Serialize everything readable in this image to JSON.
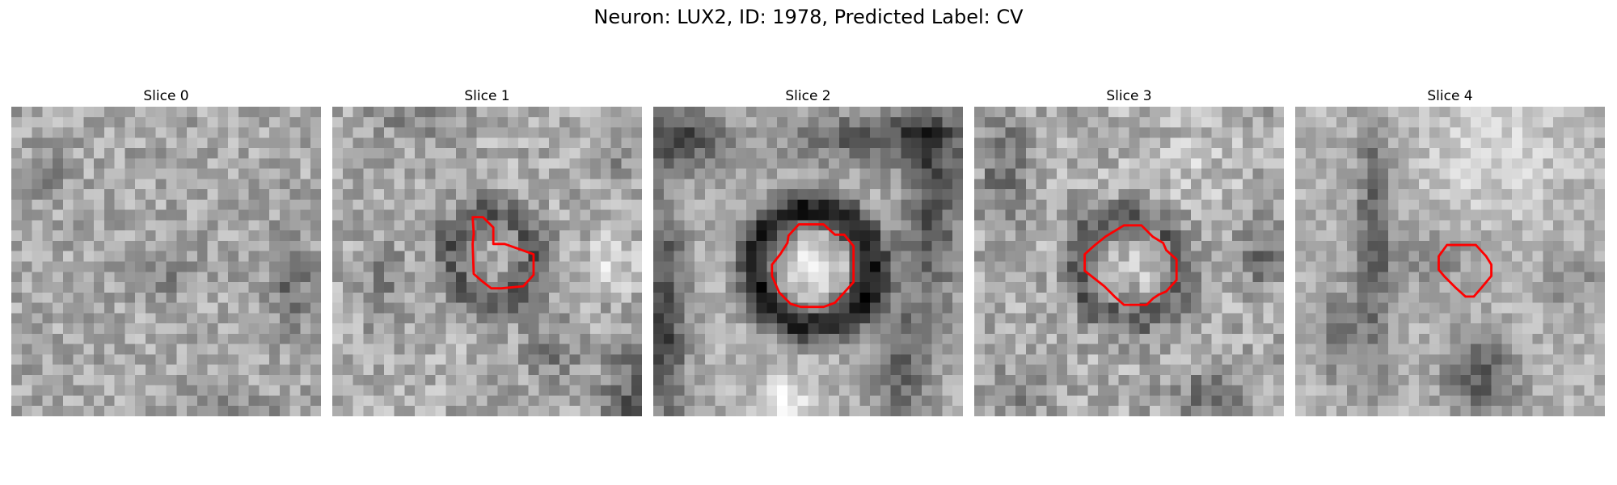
{
  "figure": {
    "title": "Neuron: LUX2, ID: 1978, Predicted Label: CV",
    "colormap": "gray",
    "contour_color": "#ff0000"
  },
  "panels": [
    {
      "title": "Slice 0",
      "has_contour": false,
      "contour": []
    },
    {
      "title": "Slice 1",
      "has_contour": true,
      "contour": [
        [
          13.6,
          10.7
        ],
        [
          14.6,
          10.7
        ],
        [
          15.6,
          11.7
        ],
        [
          15.6,
          13.3
        ],
        [
          16.7,
          13.3
        ],
        [
          19.5,
          14.3
        ],
        [
          19.5,
          16.3
        ],
        [
          18.5,
          17.4
        ],
        [
          16.4,
          17.6
        ],
        [
          15.4,
          17.6
        ],
        [
          14.5,
          16.9
        ],
        [
          13.7,
          16.2
        ],
        [
          13.6,
          13.3
        ],
        [
          13.7,
          12.3
        ]
      ]
    },
    {
      "title": "Slice 2",
      "has_contour": true,
      "contour": [
        [
          14.1,
          11.4
        ],
        [
          16.5,
          11.4
        ],
        [
          17.6,
          12.4
        ],
        [
          18.5,
          12.4
        ],
        [
          19.4,
          13.5
        ],
        [
          19.4,
          17.0
        ],
        [
          18.5,
          18.0
        ],
        [
          17.6,
          19.0
        ],
        [
          16.5,
          19.4
        ],
        [
          14.3,
          19.4
        ],
        [
          13.3,
          19.1
        ],
        [
          12.2,
          18.0
        ],
        [
          11.5,
          16.4
        ],
        [
          11.5,
          15.3
        ],
        [
          12.3,
          14.3
        ],
        [
          13.0,
          13.2
        ],
        [
          13.1,
          12.5
        ]
      ]
    },
    {
      "title": "Slice 3",
      "has_contour": true,
      "contour": [
        [
          14.5,
          11.5
        ],
        [
          16.2,
          11.5
        ],
        [
          17.3,
          12.6
        ],
        [
          18.3,
          13.2
        ],
        [
          18.6,
          13.9
        ],
        [
          19.6,
          14.8
        ],
        [
          19.6,
          16.8
        ],
        [
          18.6,
          17.9
        ],
        [
          17.9,
          18.2
        ],
        [
          17.3,
          18.6
        ],
        [
          16.7,
          19.2
        ],
        [
          14.5,
          19.2
        ],
        [
          13.6,
          18.4
        ],
        [
          12.6,
          17.4
        ],
        [
          10.7,
          15.9
        ],
        [
          10.7,
          14.3
        ],
        [
          11.7,
          13.4
        ],
        [
          12.7,
          12.6
        ]
      ]
    },
    {
      "title": "Slice 4",
      "has_contour": true,
      "contour": [
        [
          14.7,
          13.4
        ],
        [
          17.5,
          13.4
        ],
        [
          18.5,
          14.5
        ],
        [
          19.0,
          15.3
        ],
        [
          19.0,
          16.4
        ],
        [
          18.0,
          17.6
        ],
        [
          17.3,
          18.4
        ],
        [
          16.5,
          18.4
        ],
        [
          15.5,
          17.5
        ],
        [
          14.5,
          16.5
        ],
        [
          13.9,
          15.8
        ],
        [
          13.9,
          14.5
        ]
      ]
    }
  ]
}
